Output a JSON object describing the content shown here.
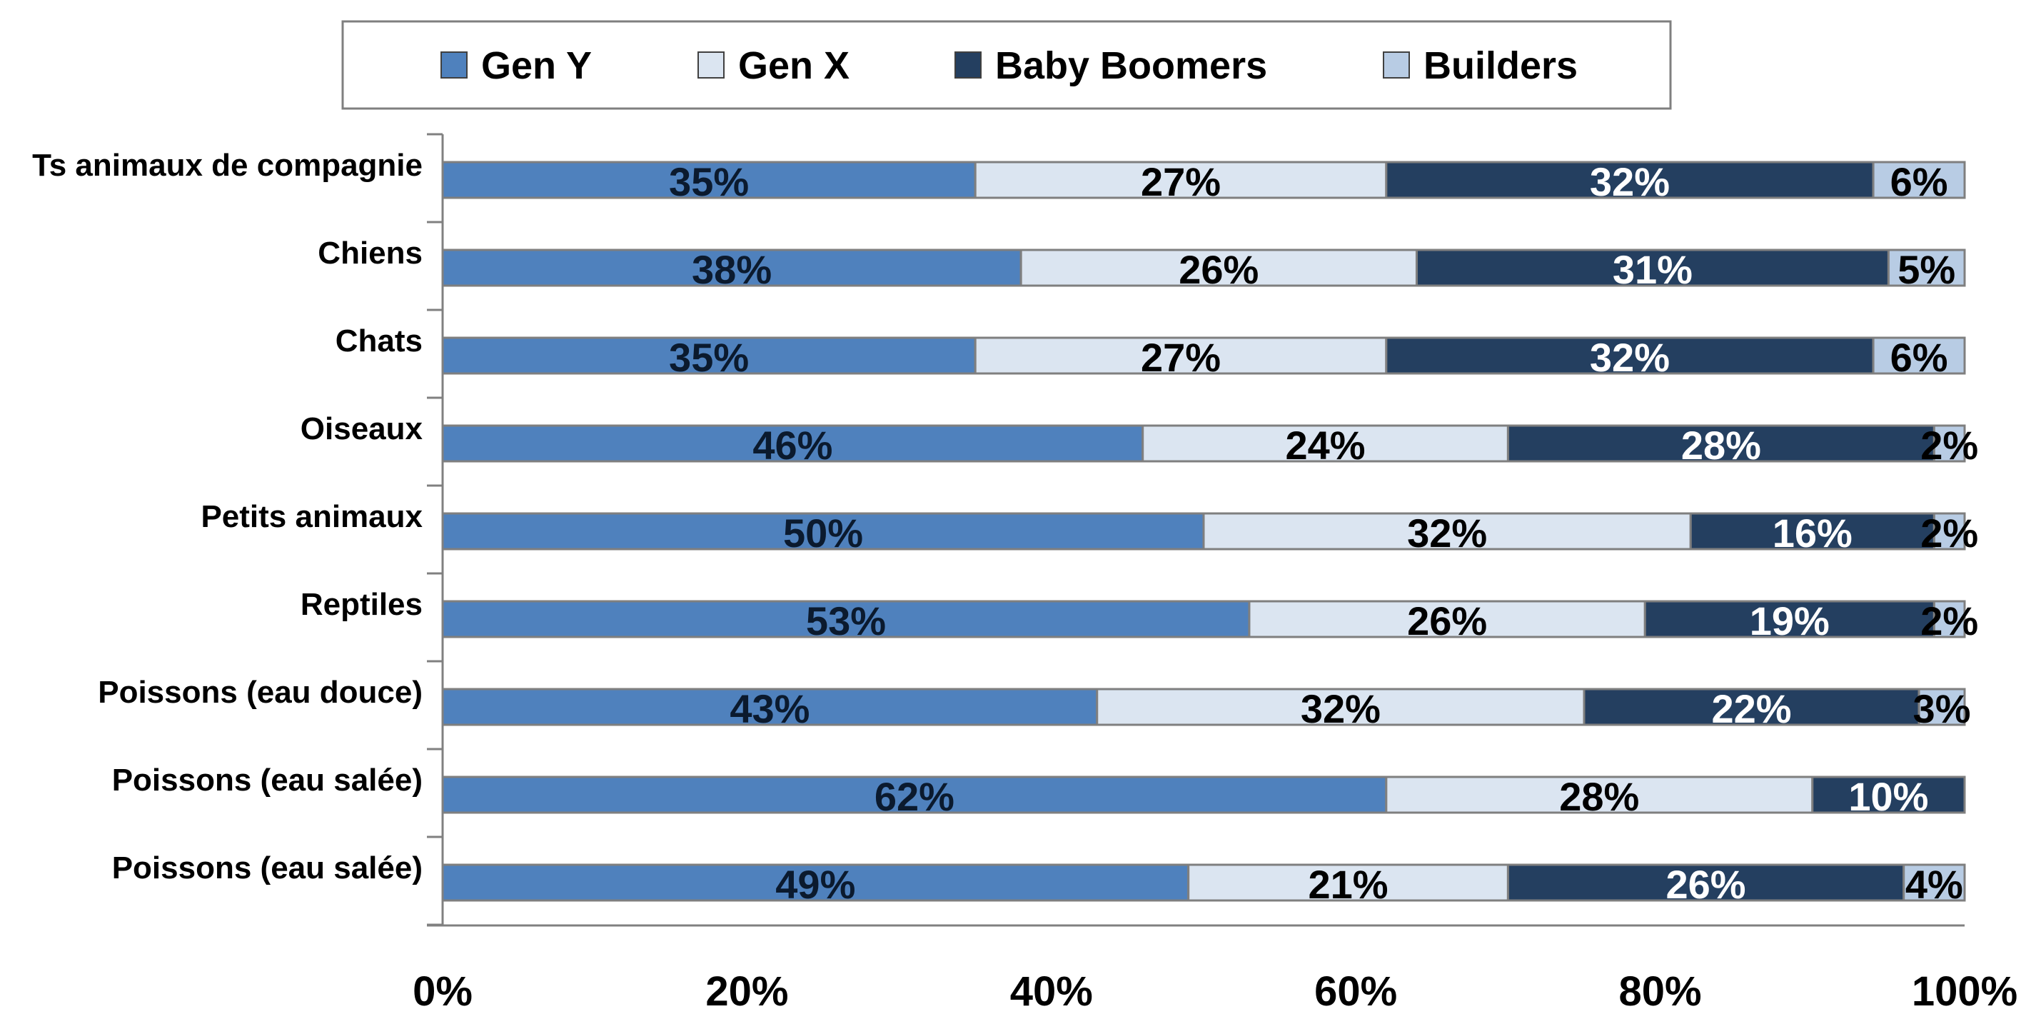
{
  "chart_data": {
    "type": "bar",
    "orientation": "horizontal",
    "stacked": true,
    "categories": [
      "Ts animaux de compagnie",
      "Chiens",
      "Chats",
      "Oiseaux",
      "Petits animaux",
      "Reptiles",
      "Poissons (eau douce)",
      "Poissons (eau salée)",
      "Poissons (eau salée)"
    ],
    "series": [
      {
        "name": "Gen Y",
        "color": "#4f81bd",
        "label_color": "#0b1a2e",
        "values": [
          35,
          38,
          35,
          46,
          50,
          53,
          43,
          62,
          49
        ],
        "labels": [
          "35%",
          "38%",
          "35%",
          "46%",
          "50%",
          "53%",
          "43%",
          "62%",
          "49%"
        ]
      },
      {
        "name": "Gen X",
        "color": "#dbe5f1",
        "label_color": "#000000",
        "values": [
          27,
          26,
          27,
          24,
          32,
          26,
          32,
          28,
          21
        ],
        "labels": [
          "27%",
          "26%",
          "27%",
          "24%",
          "32%",
          "26%",
          "32%",
          "28%",
          "21%"
        ]
      },
      {
        "name": "Baby Boomers",
        "color": "#243f60",
        "label_color": "#ffffff",
        "values": [
          32,
          31,
          32,
          28,
          16,
          19,
          22,
          10,
          26
        ],
        "labels": [
          "32%",
          "31%",
          "32%",
          "28%",
          "16%",
          "19%",
          "22%",
          "10%",
          "26%"
        ]
      },
      {
        "name": "Builders",
        "color": "#b8cce4",
        "label_color": "#000000",
        "values": [
          6,
          5,
          6,
          2,
          2,
          2,
          3,
          0,
          4
        ],
        "labels": [
          "6%",
          "5%",
          "6%",
          "2%",
          "2%",
          "2%",
          "3%",
          "",
          "4%"
        ]
      }
    ],
    "xlim": [
      0,
      100
    ],
    "x_ticks": [
      "0%",
      "20%",
      "40%",
      "60%",
      "80%",
      "100%"
    ],
    "title": "",
    "xlabel": "",
    "ylabel": "",
    "legend_position": "top",
    "grid": false
  }
}
